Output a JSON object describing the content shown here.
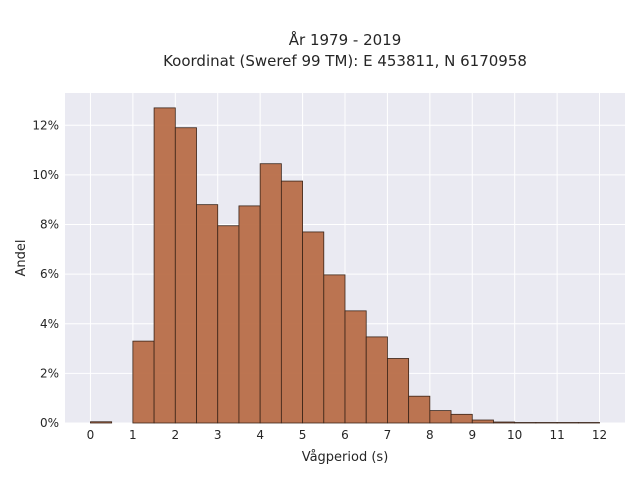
{
  "chart_data": {
    "type": "bar",
    "title_line1": "År 1979 - 2019",
    "title_line2": "Koordinat (Sweref 99 TM): E 453811, N 6170958",
    "xlabel": "Vågperiod (s)",
    "ylabel": "Andel",
    "bin_width": 0.5,
    "bin_starts": [
      0,
      0.5,
      1,
      1.5,
      2,
      2.5,
      3,
      3.5,
      4,
      4.5,
      5,
      5.5,
      6,
      6.5,
      7,
      7.5,
      8,
      8.5,
      9,
      9.5,
      10,
      10.5,
      11,
      11.5
    ],
    "values": [
      0.05,
      0,
      3.3,
      12.7,
      11.9,
      8.8,
      7.95,
      8.75,
      10.45,
      9.75,
      7.7,
      5.97,
      4.52,
      3.47,
      2.6,
      1.08,
      0.5,
      0.35,
      0.12,
      0.04,
      0.02,
      0.02,
      0.02,
      0.02
    ],
    "xlim": [
      -0.6,
      12.6
    ],
    "ylim": [
      0,
      13.3
    ],
    "x_ticks": [
      0,
      1,
      2,
      3,
      4,
      5,
      6,
      7,
      8,
      9,
      10,
      11,
      12
    ],
    "x_tick_labels": [
      "0",
      "1",
      "2",
      "3",
      "4",
      "5",
      "6",
      "7",
      "8",
      "9",
      "10",
      "11",
      "12"
    ],
    "y_ticks": [
      0,
      2,
      4,
      6,
      8,
      10,
      12
    ],
    "y_tick_labels": [
      "0%",
      "2%",
      "4%",
      "6%",
      "8%",
      "10%",
      "12%"
    ],
    "grid": true,
    "colors": {
      "bar_fill": "#b86e48",
      "bar_edge": "#3a2418",
      "plot_background": "#eaeaf2",
      "grid": "#ffffff"
    }
  }
}
